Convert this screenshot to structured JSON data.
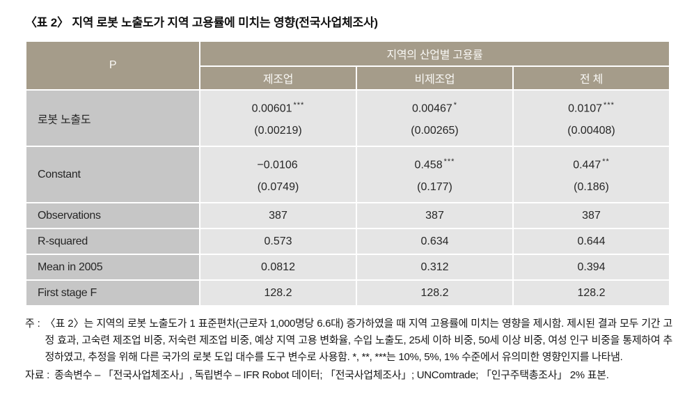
{
  "page": {
    "title": "〈표 2〉 지역 로봇 노출도가 지역 고용률에 미치는 영향(전국사업체조사)"
  },
  "table": {
    "corner_label": "P",
    "group_header": "지역의 산업별 고용률",
    "columns": [
      "제조업",
      "비제조업",
      "전 체"
    ],
    "coef_rows": [
      {
        "label": "로봇 노출도",
        "cells": [
          {
            "est": "0.00601",
            "stars": "***",
            "se": "(0.00219)"
          },
          {
            "est": "0.00467",
            "stars": "*",
            "se": "(0.00265)"
          },
          {
            "est": "0.0107",
            "stars": "***",
            "se": "(0.00408)"
          }
        ]
      },
      {
        "label": "Constant",
        "cells": [
          {
            "est": "−0.0106",
            "stars": "",
            "se": "(0.0749)"
          },
          {
            "est": "0.458",
            "stars": "***",
            "se": "(0.177)"
          },
          {
            "est": "0.447",
            "stars": "**",
            "se": "(0.186)"
          }
        ]
      }
    ],
    "stat_rows": [
      {
        "label": "Observations",
        "values": [
          "387",
          "387",
          "387"
        ]
      },
      {
        "label": "R-squared",
        "values": [
          "0.573",
          "0.634",
          "0.644"
        ]
      },
      {
        "label": "Mean in 2005",
        "values": [
          "0.0812",
          "0.312",
          "0.394"
        ]
      },
      {
        "label": "First stage F",
        "values": [
          "128.2",
          "128.2",
          "128.2"
        ]
      }
    ]
  },
  "notes": {
    "note_label": "주 :",
    "note_text": "〈표 2〉는 지역의 로봇 노출도가 1 표준편차(근로자 1,000명당 6.6대) 증가하였을 때 지역 고용률에 미치는 영향을 제시함. 제시된 결과 모두 기간 고정 효과, 고숙련 제조업 비중, 저숙련 제조업 비중, 예상 지역 고용 변화율, 수입 노출도, 25세 이하 비중, 50세 이상 비중, 여성 인구 비중을 통제하여 추정하였고, 추정을 위해 다른 국가의 로봇 도입 대수를 도구 변수로 사용함. *, **, ***는 10%, 5%, 1% 수준에서 유의미한 영향인지를 나타냄.",
    "source_label": "자료 :",
    "source_text": "종속변수 – 「전국사업체조사」, 독립변수 – IFR Robot 데이터; 「전국사업체조사」; UNComtrade; 「인구주택총조사」 2% 표본."
  },
  "colors": {
    "header_bg": "#a59c8a",
    "row_label_bg": "#c6c6c6",
    "data_cell_bg": "#e5e5e5"
  }
}
